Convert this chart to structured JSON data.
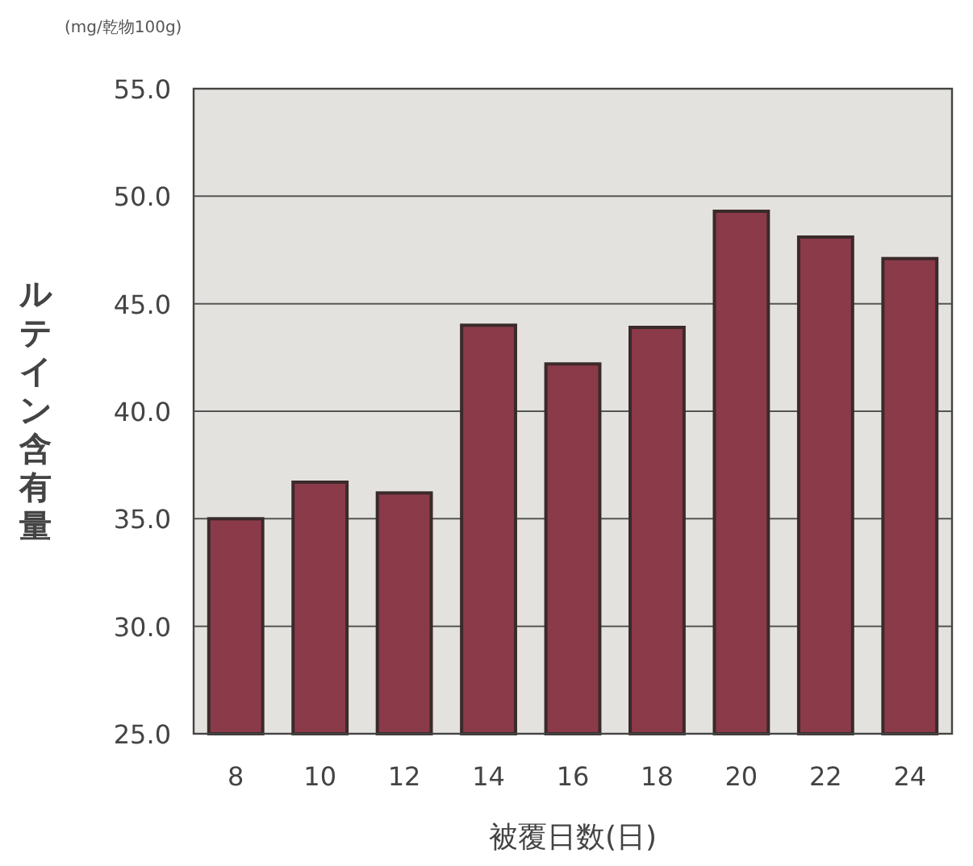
{
  "chart_data": {
    "type": "bar",
    "xlabel": "被覆日数(日)",
    "ylabel": "ルテイン含有量",
    "annotations": [
      "(mg/乾物100g)"
    ],
    "categories": [
      "8",
      "10",
      "12",
      "14",
      "16",
      "18",
      "20",
      "22",
      "24"
    ],
    "values": [
      35.0,
      36.7,
      36.2,
      44.0,
      42.2,
      43.9,
      49.3,
      48.1,
      47.1
    ],
    "color": "#8b3a4a",
    "ylim": [
      25,
      55
    ],
    "yticks": [
      {
        "value": 25,
        "label": "25.0"
      },
      {
        "value": 30,
        "label": "30.0"
      },
      {
        "value": 35,
        "label": "35.0"
      },
      {
        "value": 40,
        "label": "40.0"
      },
      {
        "value": 45,
        "label": "45.0"
      },
      {
        "value": 50,
        "label": "50.0"
      },
      {
        "value": 55,
        "label": "55.0"
      }
    ],
    "grid": "y"
  }
}
